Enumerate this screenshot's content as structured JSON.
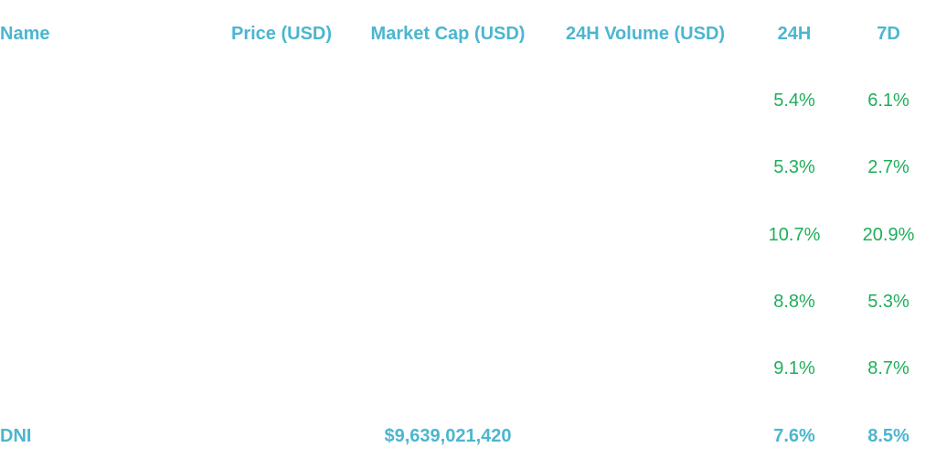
{
  "table": {
    "header": [
      "Name",
      "Price (USD)",
      "Market Cap (USD)",
      "24H Volume (USD)",
      "24H",
      "7D"
    ],
    "rows": [
      {
        "h24": "5.4%",
        "d7": "6.1%"
      },
      {
        "h24": "5.3%",
        "d7": "2.7%"
      },
      {
        "h24": "10.7%",
        "d7": "20.9%"
      },
      {
        "h24": "8.8%",
        "d7": "5.3%"
      },
      {
        "h24": "9.1%",
        "d7": "8.7%"
      },
      {
        "name": "DNI",
        "market_cap": "$9,639,021,420",
        "h24": "7.6%",
        "d7": "8.5%"
      }
    ]
  }
}
